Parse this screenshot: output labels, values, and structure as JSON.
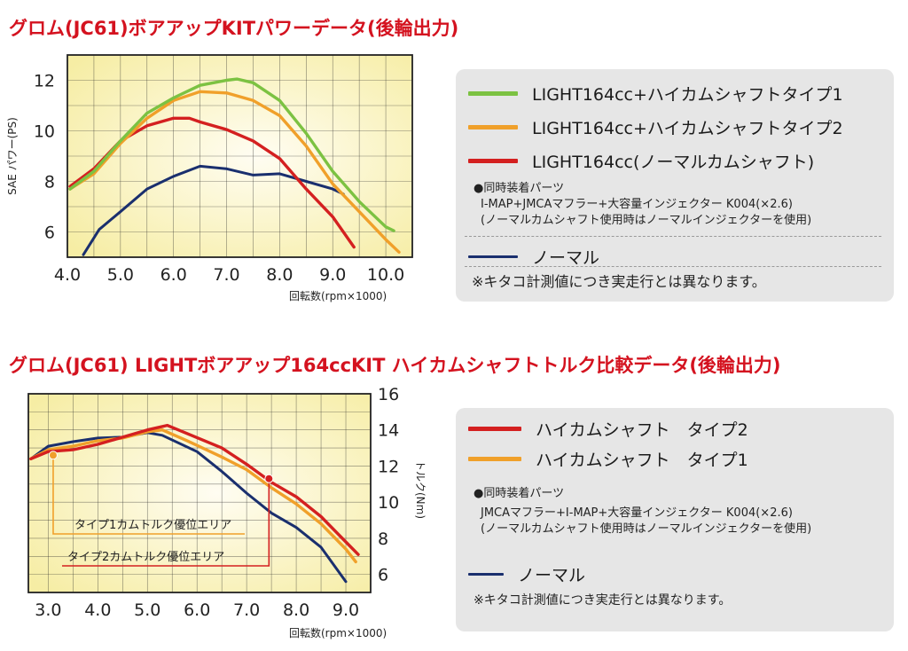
{
  "chart_data": [
    {
      "type": "line",
      "title": "グロム(JC61)ボアアップKITパワーデータ(後輪出力)",
      "xlabel": "回転数(rpm×1000)",
      "ylabel": "SAE パワー(PS)",
      "xlim": [
        4.0,
        10.5
      ],
      "ylim": [
        5.0,
        13.0
      ],
      "xticks": [
        "4.0",
        "5.0",
        "6.0",
        "7.0",
        "8.0",
        "9.0",
        "10.0"
      ],
      "yticks": [
        "6",
        "8",
        "10",
        "12"
      ],
      "grid": true,
      "series": [
        {
          "name": "LIGHT164cc+ハイカムシャフトタイプ1",
          "color": "#7cc242",
          "points": [
            [
              4.05,
              7.7
            ],
            [
              4.5,
              8.4
            ],
            [
              5.0,
              9.6
            ],
            [
              5.5,
              10.7
            ],
            [
              6.0,
              11.3
            ],
            [
              6.5,
              11.8
            ],
            [
              7.0,
              12.0
            ],
            [
              7.2,
              12.05
            ],
            [
              7.5,
              11.9
            ],
            [
              8.0,
              11.2
            ],
            [
              8.5,
              9.9
            ],
            [
              9.0,
              8.4
            ],
            [
              9.5,
              7.2
            ],
            [
              10.0,
              6.2
            ],
            [
              10.15,
              6.05
            ]
          ]
        },
        {
          "name": "LIGHT164cc+ハイカムシャフトタイプ2",
          "color": "#f0a02a",
          "points": [
            [
              4.05,
              7.7
            ],
            [
              4.5,
              8.3
            ],
            [
              5.0,
              9.5
            ],
            [
              5.5,
              10.5
            ],
            [
              6.0,
              11.2
            ],
            [
              6.5,
              11.55
            ],
            [
              7.0,
              11.5
            ],
            [
              7.5,
              11.2
            ],
            [
              8.0,
              10.6
            ],
            [
              8.5,
              9.4
            ],
            [
              9.0,
              7.9
            ],
            [
              9.5,
              6.8
            ],
            [
              10.0,
              5.7
            ],
            [
              10.25,
              5.2
            ]
          ]
        },
        {
          "name": "LIGHT164cc(ノーマルカムシャフト)",
          "color": "#d42020",
          "points": [
            [
              4.05,
              7.8
            ],
            [
              4.5,
              8.5
            ],
            [
              5.0,
              9.6
            ],
            [
              5.5,
              10.2
            ],
            [
              6.0,
              10.5
            ],
            [
              6.3,
              10.5
            ],
            [
              6.5,
              10.35
            ],
            [
              7.0,
              10.05
            ],
            [
              7.5,
              9.6
            ],
            [
              8.0,
              8.9
            ],
            [
              8.5,
              7.7
            ],
            [
              9.0,
              6.6
            ],
            [
              9.4,
              5.4
            ]
          ]
        },
        {
          "name": "ノーマル",
          "color": "#1a2f6e",
          "points": [
            [
              4.3,
              5.1
            ],
            [
              4.6,
              6.1
            ],
            [
              5.0,
              6.8
            ],
            [
              5.5,
              7.7
            ],
            [
              6.0,
              8.2
            ],
            [
              6.5,
              8.6
            ],
            [
              7.0,
              8.5
            ],
            [
              7.5,
              8.25
            ],
            [
              8.0,
              8.3
            ],
            [
              8.5,
              8.0
            ],
            [
              9.0,
              7.7
            ],
            [
              9.2,
              7.5
            ]
          ]
        }
      ]
    },
    {
      "type": "line",
      "title": "グロム(JC61) LIGHTボアアップ164ccKIT ハイカムシャフトトルク比較データ(後輪出力)",
      "xlabel": "回転数(rpm×1000)",
      "ylabel": "トルク(Nm)",
      "xlim": [
        2.6,
        9.5
      ],
      "ylim": [
        5.0,
        16.0
      ],
      "xticks": [
        "3.0",
        "4.0",
        "5.0",
        "6.0",
        "7.0",
        "8.0",
        "9.0"
      ],
      "yticks": [
        "6",
        "8",
        "10",
        "12",
        "14",
        "16"
      ],
      "grid": true,
      "series": [
        {
          "name": "ハイカムシャフト タイプ2",
          "color": "#d42020",
          "points": [
            [
              2.65,
              12.4
            ],
            [
              3.0,
              12.8
            ],
            [
              3.5,
              12.9
            ],
            [
              4.0,
              13.2
            ],
            [
              4.5,
              13.6
            ],
            [
              5.0,
              14.0
            ],
            [
              5.4,
              14.25
            ],
            [
              5.8,
              13.8
            ],
            [
              6.5,
              13.0
            ],
            [
              7.0,
              12.1
            ],
            [
              7.5,
              11.1
            ],
            [
              8.0,
              10.3
            ],
            [
              8.5,
              9.2
            ],
            [
              9.0,
              7.8
            ],
            [
              9.25,
              7.1
            ]
          ]
        },
        {
          "name": "ハイカムシャフト タイプ1",
          "color": "#f0a02a",
          "points": [
            [
              2.65,
              12.4
            ],
            [
              3.0,
              12.9
            ],
            [
              3.5,
              13.1
            ],
            [
              4.0,
              13.4
            ],
            [
              4.5,
              13.55
            ],
            [
              5.0,
              13.9
            ],
            [
              5.3,
              14.0
            ],
            [
              5.8,
              13.4
            ],
            [
              6.5,
              12.5
            ],
            [
              7.0,
              11.8
            ],
            [
              7.5,
              10.8
            ],
            [
              8.0,
              9.9
            ],
            [
              8.5,
              8.8
            ],
            [
              9.0,
              7.4
            ],
            [
              9.2,
              6.7
            ]
          ]
        },
        {
          "name": "ノーマル",
          "color": "#1a2f6e",
          "points": [
            [
              2.65,
              12.4
            ],
            [
              3.0,
              13.1
            ],
            [
              3.5,
              13.35
            ],
            [
              4.0,
              13.55
            ],
            [
              4.5,
              13.6
            ],
            [
              5.0,
              13.85
            ],
            [
              5.3,
              13.7
            ],
            [
              6.0,
              12.8
            ],
            [
              6.5,
              11.7
            ],
            [
              7.0,
              10.5
            ],
            [
              7.5,
              9.4
            ],
            [
              8.0,
              8.6
            ],
            [
              8.5,
              7.5
            ],
            [
              9.0,
              5.6
            ]
          ]
        }
      ],
      "annotations": [
        {
          "label": "タイプ1カムトルク優位エリア",
          "x": 3.1,
          "y": 12.6
        },
        {
          "label": "タイプ2カムトルク優位エリア",
          "x": 7.45,
          "y": 11.3
        }
      ]
    }
  ],
  "titles": {
    "power": "グロム(JC61)ボアアップKITパワーデータ(後輪出力)",
    "torque": "グロム(JC61) LIGHTボアアップ164ccKIT ハイカムシャフトトルク比較データ(後輪出力)"
  },
  "legend1": {
    "entries": [
      {
        "label": "LIGHT164cc+ハイカムシャフトタイプ1",
        "color": "#7cc242"
      },
      {
        "label": "LIGHT164cc+ハイカムシャフトタイプ2",
        "color": "#f0a02a"
      },
      {
        "label": "LIGHT164cc(ノーマルカムシャフト)",
        "color": "#d42020"
      }
    ],
    "parts_heading": "●同時装着パーツ",
    "parts_line1": "I-MAP+JMCAマフラー+大容量インジェクター K004(×2.6)",
    "parts_line2": "(ノーマルカムシャフト使用時はノーマルインジェクターを使用)",
    "normal_label": "ノーマル",
    "normal_color": "#1a2f6e",
    "disclaimer": "※キタコ計測値につき実走行とは異なります。"
  },
  "legend2": {
    "entries": [
      {
        "label": "ハイカムシャフト　タイプ2",
        "color": "#d42020"
      },
      {
        "label": "ハイカムシャフト　タイプ1",
        "color": "#f0a02a"
      }
    ],
    "parts_heading": "●同時装着パーツ",
    "parts_line1": "JMCAマフラー+I-MAP+大容量インジェクター K004(×2.6)",
    "parts_line2": "(ノーマルカムシャフト使用時はノーマルインジェクターを使用)",
    "normal_label": "ノーマル",
    "normal_color": "#1a2f6e",
    "disclaimer": "※キタコ計測値につき実走行とは異なります。"
  }
}
